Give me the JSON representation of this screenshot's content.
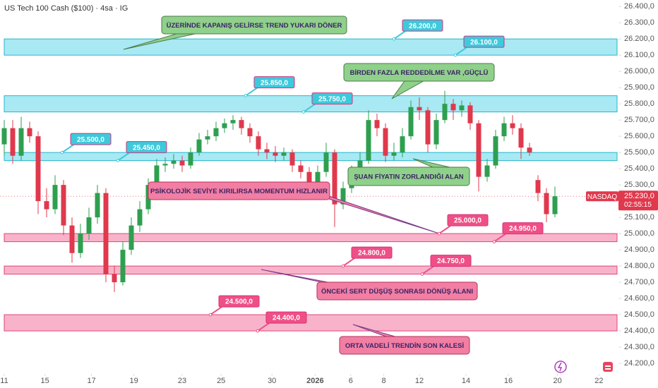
{
  "chart_data": {
    "type": "candlestick",
    "title": "US Tech 100 Cash ($100) · 4sa · IG",
    "up_color": "#2e9f4f",
    "down_color": "#e0384c",
    "open": [
      25550,
      25650,
      25480,
      25650,
      25600,
      25200,
      25150,
      25300,
      25050,
      24880,
      25000,
      25100,
      25250,
      24750,
      24700,
      24900,
      25050,
      25150,
      25300,
      25420,
      25430,
      25450,
      25420,
      25500,
      25580,
      25600,
      25650,
      25680,
      25700,
      25650,
      25600,
      25520,
      25500,
      25480,
      25500,
      25420,
      25380,
      25320,
      25380,
      25500,
      25180,
      25280,
      25380,
      25450,
      25700,
      25650,
      25480,
      25500,
      25600,
      25780,
      25760,
      25550,
      25700,
      25800,
      25760,
      25790,
      25680,
      25350,
      25420,
      25600,
      25680,
      25650,
      25530,
      25330,
      25250,
      25120
    ],
    "high": [
      25700,
      25700,
      25720,
      25690,
      25630,
      25280,
      25360,
      25330,
      25100,
      25060,
      25160,
      25300,
      25280,
      24800,
      24950,
      25100,
      25200,
      25340,
      25460,
      25470,
      25490,
      25480,
      25530,
      25620,
      25640,
      25690,
      25710,
      25730,
      25720,
      25680,
      25630,
      25560,
      25540,
      25530,
      25520,
      25450,
      25410,
      25420,
      25560,
      25520,
      25320,
      25420,
      25500,
      25760,
      25740,
      25680,
      25560,
      25650,
      25820,
      25840,
      25780,
      25740,
      25880,
      25830,
      25820,
      25810,
      25700,
      25460,
      25640,
      25720,
      25730,
      25680,
      25560,
      25360,
      25280,
      25290
    ],
    "low": [
      25480,
      25430,
      25450,
      25560,
      25120,
      25100,
      25120,
      24990,
      24820,
      24850,
      24960,
      25060,
      24700,
      24640,
      24680,
      24870,
      25010,
      25120,
      25280,
      25380,
      25400,
      25380,
      25400,
      25480,
      25550,
      25570,
      25620,
      25640,
      25610,
      25560,
      25480,
      25460,
      25440,
      25450,
      25380,
      25340,
      25280,
      25300,
      25350,
      25040,
      25150,
      25250,
      25350,
      25430,
      25600,
      25440,
      25450,
      25470,
      25580,
      25700,
      25500,
      25520,
      25680,
      25700,
      25720,
      25640,
      25260,
      25320,
      25400,
      25570,
      25610,
      25460,
      25480,
      25200,
      25070,
      25100
    ],
    "close": [
      25650,
      25480,
      25650,
      25600,
      25200,
      25150,
      25300,
      25050,
      24880,
      25000,
      25100,
      25250,
      24750,
      24700,
      24900,
      25050,
      25150,
      25300,
      25420,
      25430,
      25450,
      25420,
      25500,
      25580,
      25600,
      25650,
      25680,
      25700,
      25650,
      25600,
      25520,
      25500,
      25480,
      25500,
      25420,
      25380,
      25320,
      25380,
      25500,
      25180,
      25280,
      25380,
      25450,
      25700,
      25650,
      25480,
      25500,
      25600,
      25780,
      25760,
      25550,
      25700,
      25800,
      25760,
      25790,
      25680,
      25350,
      25420,
      25600,
      25680,
      25650,
      25530,
      25500,
      25250,
      25120,
      25230
    ],
    "xlim": [
      -0.5,
      72.5
    ],
    "xticks": [
      {
        "value": 0,
        "label": "11"
      },
      {
        "value": 4.8,
        "label": "15"
      },
      {
        "value": 10.3,
        "label": "17"
      },
      {
        "value": 15.3,
        "label": "19"
      },
      {
        "value": 21,
        "label": "23"
      },
      {
        "value": 25.6,
        "label": "25"
      },
      {
        "value": 31.6,
        "label": "30"
      },
      {
        "value": 36.7,
        "label": "2026"
      },
      {
        "value": 40.9,
        "label": "6"
      },
      {
        "value": 44.8,
        "label": "8"
      },
      {
        "value": 49,
        "label": "12"
      },
      {
        "value": 54.5,
        "label": "14"
      },
      {
        "value": 59.5,
        "label": "16"
      },
      {
        "value": 65.3,
        "label": "20"
      },
      {
        "value": 70.2,
        "label": "22"
      }
    ],
    "ylim": [
      24135,
      26440
    ],
    "yticks": [
      {
        "value": 24200,
        "label": "24.200,0"
      },
      {
        "value": 24300,
        "label": "24.300,0"
      },
      {
        "value": 24400,
        "label": "24.400,0"
      },
      {
        "value": 24500,
        "label": "24.500,0"
      },
      {
        "value": 24600,
        "label": "24.600,0"
      },
      {
        "value": 24700,
        "label": "24.700,0"
      },
      {
        "value": 24800,
        "label": "24.800,0"
      },
      {
        "value": 24900,
        "label": "24.900,0"
      },
      {
        "value": 25000,
        "label": "25.000,0"
      },
      {
        "value": 25100,
        "label": "25.100,0"
      },
      {
        "value": 25200,
        "label": "25.200,0"
      },
      {
        "value": 25300,
        "label": "25.300,0"
      },
      {
        "value": 25400,
        "label": "25.400,0"
      },
      {
        "value": 25500,
        "label": "25.500,0"
      },
      {
        "value": 25600,
        "label": "25.600,0"
      },
      {
        "value": 25700,
        "label": "25.700,0"
      },
      {
        "value": 25800,
        "label": "25.800,0"
      },
      {
        "value": 25900,
        "label": "25.900,0"
      },
      {
        "value": 26000,
        "label": "26.000,0"
      },
      {
        "value": 26100,
        "label": "26.100,0"
      },
      {
        "value": 26200,
        "label": "26.200,0"
      },
      {
        "value": 26300,
        "label": "26.300,0"
      },
      {
        "value": 26400,
        "label": "26.400,0"
      }
    ],
    "grid": false,
    "zones": [
      {
        "low": 26100,
        "high": 26200,
        "color": "#a8e9f3"
      },
      {
        "low": 25750,
        "high": 25850,
        "color": "#a8e9f3"
      },
      {
        "low": 25450,
        "high": 25500,
        "color": "#a8e9f3"
      },
      {
        "low": 24950,
        "high": 25000,
        "color": "#f8b3cb"
      },
      {
        "low": 24750,
        "high": 24800,
        "color": "#f8b3cb"
      },
      {
        "low": 24400,
        "high": 24500,
        "color": "#f8b3cb"
      }
    ],
    "price_tags": [
      {
        "value": 26200,
        "label": "26.200,0",
        "color": "#3ec9dc"
      },
      {
        "value": 26100,
        "label": "26.100,0",
        "color": "#3ec9dc"
      },
      {
        "value": 25850,
        "label": "25.850,0",
        "color": "#3ec9dc"
      },
      {
        "value": 25750,
        "label": "25.750,0",
        "color": "#3ec9dc"
      },
      {
        "value": 25500,
        "label": "25.500,0",
        "color": "#3ec9dc"
      },
      {
        "value": 25450,
        "label": "25.450,0",
        "color": "#3ec9dc"
      },
      {
        "value": 25000,
        "label": "25.000,0",
        "color": "#ef4f86"
      },
      {
        "value": 24950,
        "label": "24.950,0",
        "color": "#ef4f86"
      },
      {
        "value": 24800,
        "label": "24.800,0",
        "color": "#ef4f86"
      },
      {
        "value": 24750,
        "label": "24.750,0",
        "color": "#ef4f86"
      },
      {
        "value": 24500,
        "label": "24.500,0",
        "color": "#ef4f86"
      },
      {
        "value": 24400,
        "label": "24.400,0",
        "color": "#ef4f86"
      }
    ],
    "callouts": [
      {
        "text": "ÜZERİNDE KAPANIŞ GELİRSE TREND YUKARI DÖNER",
        "color": "#8fd08a"
      },
      {
        "text": "BİRDEN FAZLA REDDEDİLME VAR ,GÜÇLÜ",
        "color": "#8fd08a"
      },
      {
        "text": "ŞUAN FİYATIN ZORLANDIĞI ALAN",
        "color": "#8fd08a"
      },
      {
        "text": "PSİKOLOJİK SEVİYE KIRILIRSA MOMENTUM HIZLANIR",
        "color": "#f27ea3"
      },
      {
        "text": "ÖNCEKİ SERT DÜŞÜŞ SONRASI DÖNÜŞ ALANI",
        "color": "#f27ea3"
      },
      {
        "text": "ORTA VADELİ TRENDİN SON KALESİ",
        "color": "#f27ea3"
      }
    ],
    "last_price": {
      "value": 25230,
      "label": "25.230,0",
      "countdown": "02:55:15",
      "exchange": "NASDAQ",
      "color": "#e0384c"
    }
  }
}
